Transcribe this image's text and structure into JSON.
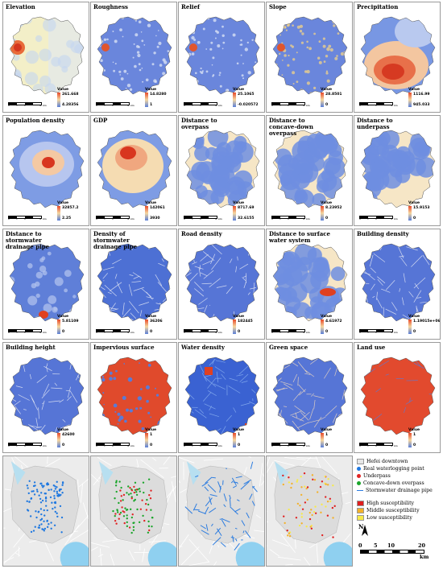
{
  "panels": [
    {
      "title": "Elevation",
      "high": "261.668",
      "low": "4.28356",
      "value_label": "Value",
      "style": "elev"
    },
    {
      "title": "Roughness",
      "high": "14.8280",
      "low": "1",
      "value_label": "Value",
      "style": "rough"
    },
    {
      "title": "Relief",
      "high": "25.1065",
      "low": "-0.020572",
      "value_label": "Value",
      "style": "rough"
    },
    {
      "title": "Slope",
      "high": "28.8501",
      "low": "0",
      "value_label": "Value",
      "style": "slope"
    },
    {
      "title": "Precipitation",
      "high": "1116.99",
      "low": "945.033",
      "value_label": "Value",
      "style": "precip"
    },
    {
      "title": "Population density",
      "high": "32857.2",
      "low": "2.25",
      "value_label": "Value",
      "style": "pop"
    },
    {
      "title": "GDP",
      "high": "142061",
      "low": "3930",
      "value_label": "Value",
      "style": "gdp"
    },
    {
      "title": "Distance to overpass",
      "high": "8717.69",
      "low": "32.6155",
      "value_label": "Value",
      "style": "blobs"
    },
    {
      "title": "Distance to concave-down overpass",
      "high": "8.23952",
      "low": "0",
      "value_label": "Value",
      "style": "blobs"
    },
    {
      "title": "Distance to underpass",
      "high": "15.9153",
      "low": "0",
      "value_label": "Value",
      "style": "under"
    },
    {
      "title": "Distance to stormwater drainage pipe",
      "high": "5.81109",
      "low": "0",
      "value_label": "Value",
      "style": "pipe"
    },
    {
      "title": "Density of stormwater drainage pipe",
      "high": "36206",
      "low": "0",
      "value_label": "Value",
      "style": "dens"
    },
    {
      "title": "Road density",
      "high": "182445",
      "low": "0",
      "value_label": "Value",
      "style": "road"
    },
    {
      "title": "Distance to surface water system",
      "high": "4.61972",
      "low": "0",
      "value_label": "Value",
      "style": "blobs"
    },
    {
      "title": "Building density",
      "high": "1.19015e+06",
      "low": "0",
      "value_label": "Value",
      "style": "road"
    },
    {
      "title": "Building height",
      "high": "42600",
      "low": "0",
      "value_label": "Value",
      "style": "road"
    },
    {
      "title": "Impervious surface",
      "high": "1",
      "low": "0",
      "value_label": "Value",
      "style": "imperv"
    },
    {
      "title": "Water density",
      "high": "1",
      "low": "0",
      "value_label": "Value",
      "style": "water"
    },
    {
      "title": "Green space",
      "high": "1",
      "low": "0",
      "value_label": "Value",
      "style": "green"
    },
    {
      "title": "Land use",
      "high": "1",
      "low": "0",
      "value_label": "Value",
      "style": "land"
    }
  ],
  "scalebar_ticks": [
    "0",
    "1",
    "2",
    "4",
    "km"
  ],
  "legend": {
    "items": [
      {
        "label": "Hefei downtown",
        "color": "#e6e6e6",
        "shape": "rect"
      },
      {
        "label": "Real waterlogging point",
        "color": "#1f78e0",
        "shape": "dot"
      },
      {
        "label": "Underpass",
        "color": "#e02424",
        "shape": "dot"
      },
      {
        "label": "Concave-down overpass",
        "color": "#1aa52a",
        "shape": "dot"
      },
      {
        "label": "Stormwater drainage pipe",
        "color": "#2a7be0",
        "shape": "line"
      },
      {
        "label": "High susceptibility",
        "color": "#e01e1e",
        "shape": "rect"
      },
      {
        "label": "Middle susceptibility",
        "color": "#f3b12a",
        "shape": "rect"
      },
      {
        "label": "Low susceptibility",
        "color": "#f7ea4a",
        "shape": "rect"
      }
    ],
    "north": "N",
    "scale_ticks": [
      "0",
      "5",
      "10",
      "20"
    ],
    "scale_unit": "km"
  }
}
